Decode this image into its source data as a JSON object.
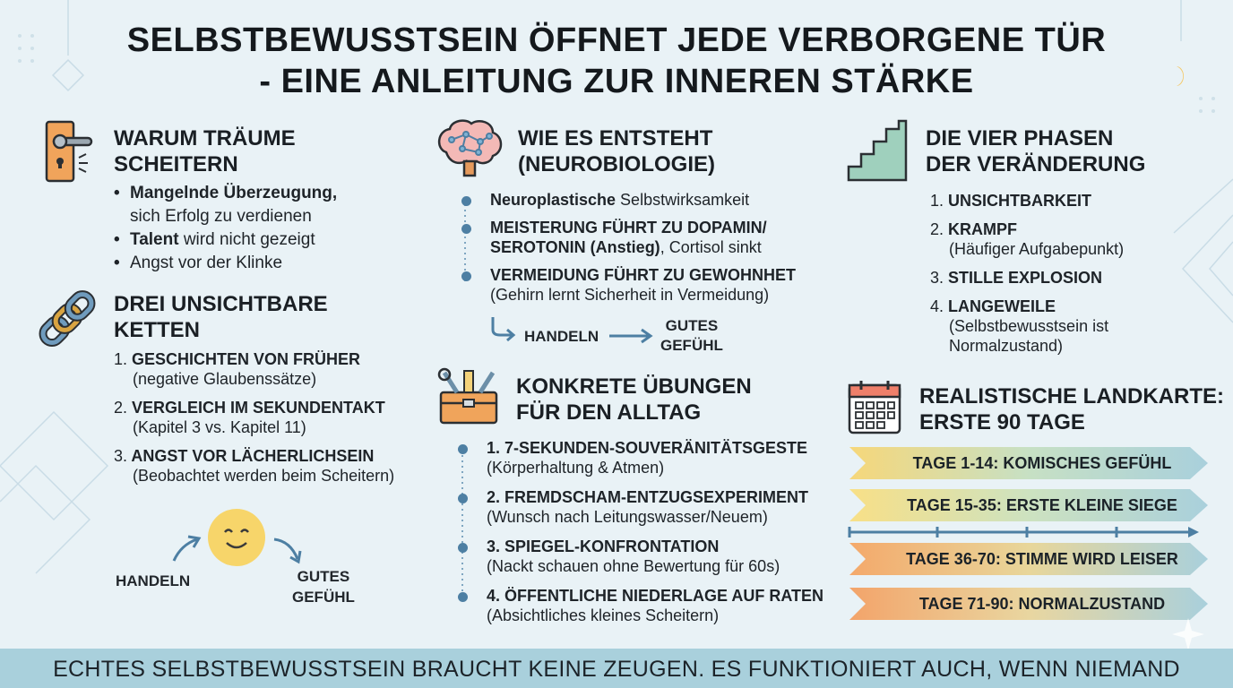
{
  "title_line1": "SELBSTBEWUSSTSEIN ÖFFNET JEDE VERBORGENE TÜR",
  "title_line2": "- EINE ANLEITUNG ZUR INNEREN STÄRKE",
  "warum": {
    "heading_line1": "WARUM TRÄUME",
    "heading_line2": "SCHEITERN",
    "b1_bold": "Mangelnde Überzeugung,",
    "b1_rest": "sich Erfolg zu verdienen",
    "b2_bold": "Talent",
    "b2_rest": " wird nicht gezeigt",
    "b3": "Angst vor der Klinke"
  },
  "ketten": {
    "heading_line1": "DREI UNSICHTBARE",
    "heading_line2": "KETTEN",
    "items": [
      {
        "num": "1.",
        "main": "GESCHICHTEN VON FRÜHER",
        "sub": "(negative Glaubenssätze)"
      },
      {
        "num": "2.",
        "main": "VERGLEICH IM SEKUNDENTAKT",
        "sub": "(Kapitel 3 vs. Kapitel 11)"
      },
      {
        "num": "3.",
        "main": "ANGST VOR LÄCHERLICHSEIN",
        "sub": "(Beobachtet werden beim Scheitern)"
      }
    ],
    "handeln": "HANDELN",
    "gutes_line1": "GUTES",
    "gutes_line2": "GEFÜHL"
  },
  "neuro": {
    "heading_line1": "WIE ES ENTSTEHT",
    "heading_line2": "(NEUROBIOLOGIE)",
    "i1_bold": "Neuroplastische",
    "i1_rest": " Selbstwirksamkeit",
    "i2_line1": "MEISTERUNG FÜHRT ZU DOPAMIN/",
    "i2_bold2": "SEROTONIN (Anstieg)",
    "i2_rest2": ", Cortisol sinkt",
    "i3_line1": "VERMEIDUNG FÜHRT ZU GEWOHNHET",
    "i3_line2": "(Gehirn lernt Sicherheit in Vermeidung)",
    "handeln": "HANDELN",
    "gutes_line1": "GUTES",
    "gutes_line2": "GEFÜHL"
  },
  "uebungen": {
    "heading_line1": "KONKRETE ÜBUNGEN",
    "heading_line2": "FÜR DEN ALLTAG",
    "items": [
      {
        "main": "1. 7-SEKUNDEN-SOUVERÄNITÄTSGESTE",
        "sub": "(Körperhaltung & Atmen)"
      },
      {
        "main": "2. FREMDSCHAM-ENTZUGSEXPERIMENT",
        "sub": "(Wunsch nach Leitungswasser/Neuem)"
      },
      {
        "main": "3. SPIEGEL-KONFRONTATION",
        "sub": "(Nackt schauen ohne Bewertung für 60s)"
      },
      {
        "main": "4. ÖFFENTLICHE NIEDERLAGE AUF RATEN",
        "sub": "(Absichtliches kleines Scheitern)"
      }
    ]
  },
  "phasen": {
    "heading_line1": "DIE VIER PHASEN",
    "heading_line2": "DER VERÄNDERUNG",
    "items": [
      {
        "num": "1.",
        "main": "UNSICHTBARKEIT",
        "sub": ""
      },
      {
        "num": "2.",
        "main": "KRAMPF",
        "sub": "(Häufiger Aufgabepunkt)"
      },
      {
        "num": "3.",
        "main": "STILLE EXPLOSION",
        "sub": ""
      },
      {
        "num": "4.",
        "main": "LANGEWEILE",
        "sub": "(Selbstbewusstsein ist",
        "sub2": "Normalzustand)"
      }
    ]
  },
  "landkarte": {
    "heading_line1": "REALISTISCHE LANDKARTE:",
    "heading_line2": "ERSTE 90 TAGE",
    "bands": [
      "TAGE 1-14: KOMISCHES GEFÜHL",
      "TAGE 15-35: ERSTE KLEINE SIEGE",
      "TAGE 36-70: STIMME WIRD LEISER",
      "TAGE 71-90: NORMALZUSTAND"
    ]
  },
  "footer": "ECHTES SELBSTBEWUSSTSEIN BRAUCHT KEINE ZEUGEN. ES FUNKTIONIERT AUCH, WENN NIEMAND ZUSCHAUT.",
  "colors": {
    "background": "#e9f2f6",
    "footer_bar": "#a9d0dc",
    "accent_blue": "#4d7fa3",
    "smiley": "#f7d56a",
    "stairs": "#9fd0bd",
    "door": "#f0a45b"
  }
}
